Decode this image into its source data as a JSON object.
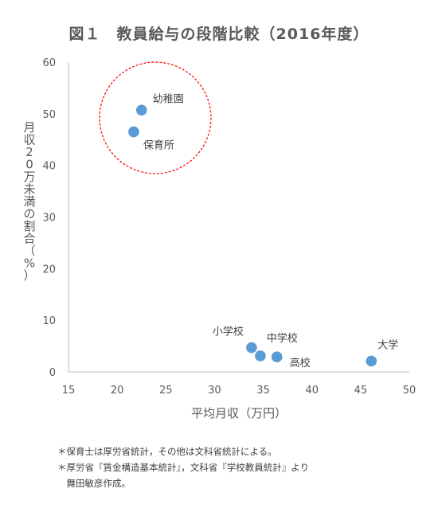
{
  "chart_data": {
    "type": "scatter",
    "title": "図１　教員給与の段階比較（2016年度）",
    "xlabel": "平均月収（万円）",
    "ylabel": "月収20万未満の割合（%）",
    "xlim": [
      15,
      50
    ],
    "ylim": [
      0,
      60
    ],
    "xticks": [
      "15",
      "20",
      "25",
      "30",
      "35",
      "40",
      "45",
      "50"
    ],
    "yticks": [
      "0",
      "10",
      "20",
      "30",
      "40",
      "50",
      "60"
    ],
    "grid": false,
    "points": [
      {
        "label": "幼稚園",
        "x": 22.5,
        "y": 50.7
      },
      {
        "label": "保育所",
        "x": 21.7,
        "y": 46.5
      },
      {
        "label": "小学校",
        "x": 33.8,
        "y": 4.7
      },
      {
        "label": "中学校",
        "x": 34.7,
        "y": 3.1
      },
      {
        "label": "高校",
        "x": 36.4,
        "y": 2.9
      },
      {
        "label": "大学",
        "x": 46.1,
        "y": 2.1
      }
    ],
    "series_color": "#5B9BD5",
    "highlight_circle_color": "#FF0000"
  },
  "notes": [
    "＊保育士は厚労省統計，その他は文科省統計による。",
    "＊厚労省『賃金構造基本統計』，文科省『学校教員統計』より",
    "　舞田敏彦作成。"
  ]
}
